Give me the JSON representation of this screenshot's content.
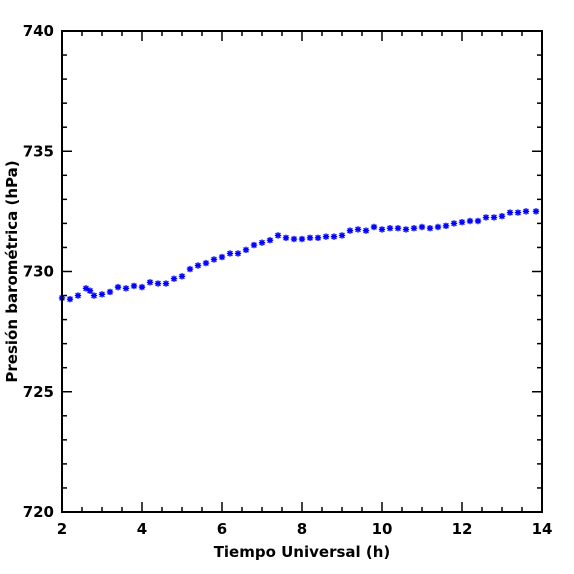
{
  "chart_data": {
    "type": "scatter",
    "title": "",
    "xlabel": "Tiempo Universal (h)",
    "ylabel": "Presión barométrica (hPa)",
    "xlim": [
      2,
      14
    ],
    "ylim": [
      720,
      740
    ],
    "xticks": [
      2,
      4,
      6,
      8,
      10,
      12,
      14
    ],
    "yticks": [
      720,
      725,
      730,
      735,
      740
    ],
    "marker": "asterisk",
    "grid": false,
    "series": [
      {
        "color": "#0000ff",
        "x": [
          2.0,
          2.2,
          2.4,
          2.6,
          2.7,
          2.8,
          3.0,
          3.2,
          3.4,
          3.6,
          3.8,
          4.0,
          4.2,
          4.4,
          4.6,
          4.8,
          5.0,
          5.2,
          5.4,
          5.6,
          5.8,
          6.0,
          6.2,
          6.4,
          6.6,
          6.8,
          7.0,
          7.2,
          7.4,
          7.6,
          7.8,
          8.0,
          8.2,
          8.4,
          8.6,
          8.8,
          9.0,
          9.2,
          9.4,
          9.6,
          9.8,
          10.0,
          10.2,
          10.4,
          10.6,
          10.8,
          11.0,
          11.2,
          11.4,
          11.6,
          11.8,
          12.0,
          12.2,
          12.4,
          12.6,
          12.8,
          13.0,
          13.2,
          13.4,
          13.6,
          13.85
        ],
        "y": [
          728.9,
          728.85,
          729.0,
          729.3,
          729.2,
          729.0,
          729.05,
          729.15,
          729.35,
          729.3,
          729.4,
          729.35,
          729.55,
          729.5,
          729.5,
          729.7,
          729.8,
          730.1,
          730.25,
          730.35,
          730.5,
          730.6,
          730.75,
          730.75,
          730.9,
          731.1,
          731.2,
          731.3,
          731.5,
          731.4,
          731.35,
          731.35,
          731.4,
          731.4,
          731.45,
          731.45,
          731.5,
          731.7,
          731.75,
          731.7,
          731.85,
          731.75,
          731.8,
          731.8,
          731.75,
          731.8,
          731.85,
          731.8,
          731.85,
          731.9,
          732.0,
          732.05,
          732.1,
          732.1,
          732.25,
          732.25,
          732.3,
          732.45,
          732.45,
          732.5,
          732.5
        ]
      }
    ]
  }
}
